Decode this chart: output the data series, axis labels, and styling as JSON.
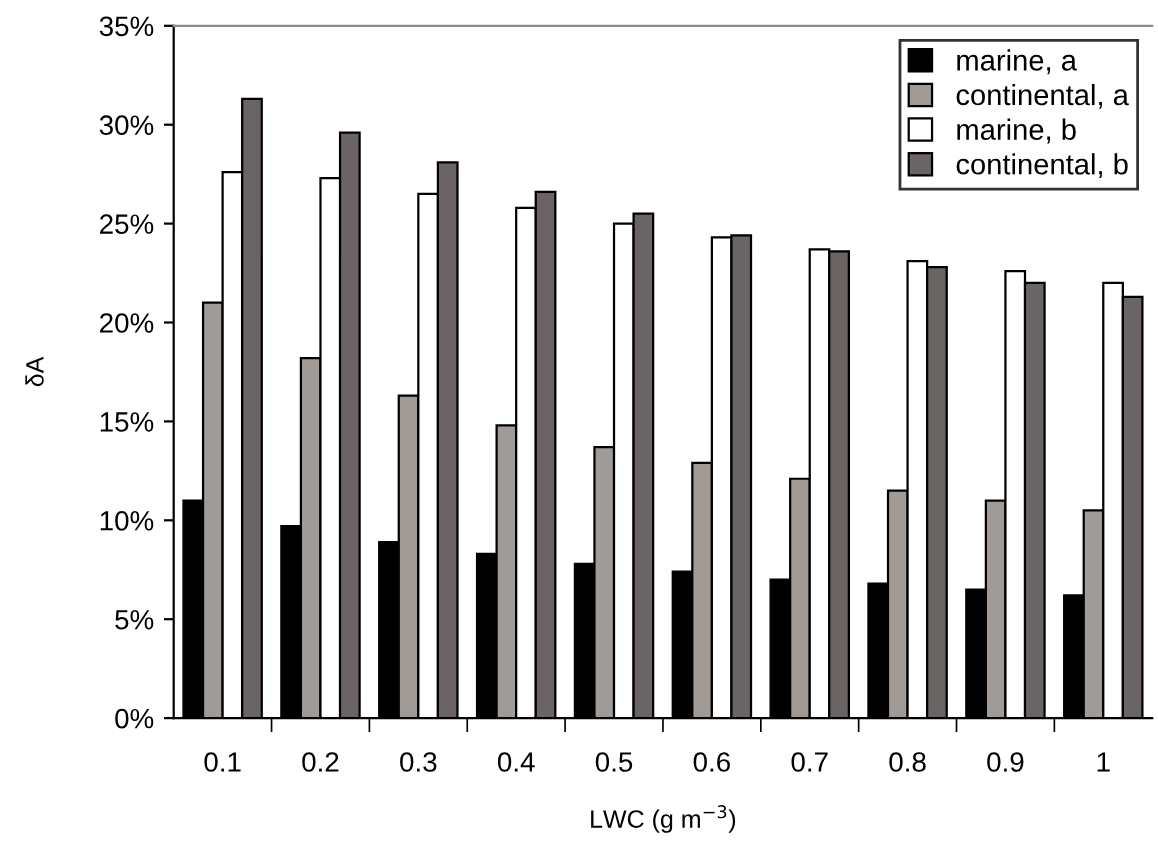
{
  "chart_data": {
    "type": "bar",
    "xlabel": "LWC (g m$^{−3}$)",
    "ylabel": "δA",
    "categories": [
      "0.1",
      "0.2",
      "0.3",
      "0.4",
      "0.5",
      "0.6",
      "0.7",
      "0.8",
      "0.9",
      "1"
    ],
    "series": [
      {
        "name": "marine, a",
        "color": "#000000",
        "values": [
          11.0,
          9.7,
          8.9,
          8.3,
          7.8,
          7.4,
          7.0,
          6.8,
          6.5,
          6.2
        ]
      },
      {
        "name": "continental, a",
        "color": "#a19b98",
        "values": [
          21.0,
          18.2,
          16.3,
          14.8,
          13.7,
          12.9,
          12.1,
          11.5,
          11.0,
          10.5
        ]
      },
      {
        "name": "marine, b",
        "color": "#ffffff",
        "values": [
          27.6,
          27.3,
          26.5,
          25.8,
          25.0,
          24.3,
          23.7,
          23.1,
          22.6,
          22.0
        ]
      },
      {
        "name": "continental, b",
        "color": "#6a6464",
        "values": [
          31.3,
          29.6,
          28.1,
          26.6,
          25.5,
          24.4,
          23.6,
          22.8,
          22.0,
          21.3
        ]
      }
    ],
    "ylim": [
      0,
      35
    ],
    "yticks": [
      {
        "value": 0,
        "label": "0%"
      },
      {
        "value": 5,
        "label": "5%"
      },
      {
        "value": 10,
        "label": "10%"
      },
      {
        "value": 15,
        "label": "15%"
      },
      {
        "value": 20,
        "label": "20%"
      },
      {
        "value": 25,
        "label": "25%"
      },
      {
        "value": 30,
        "label": "30%"
      },
      {
        "value": 35,
        "label": "35%"
      }
    ],
    "grid": false,
    "legend": "top right"
  }
}
